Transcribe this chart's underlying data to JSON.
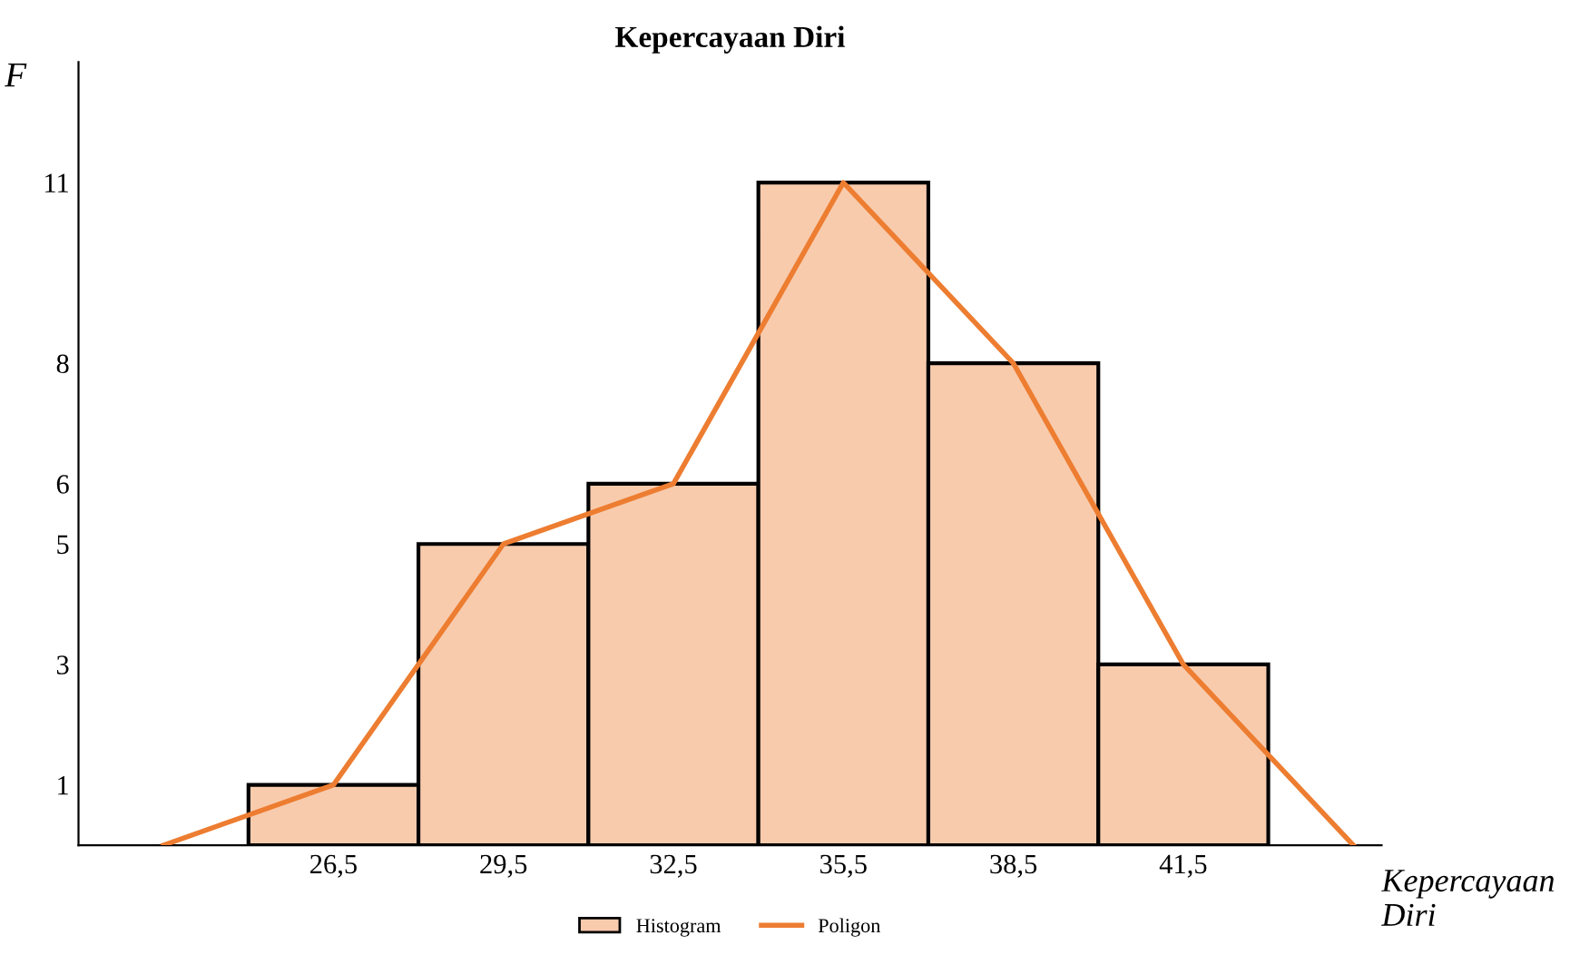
{
  "chart_data": {
    "type": "histogram",
    "title": "Kepercayaan Diri",
    "xlabel": "Kepercayaan Diri",
    "ylabel": "F",
    "bins": [
      25,
      28,
      31,
      34,
      37,
      40,
      43
    ],
    "series": [
      {
        "name": "Histogram",
        "color": "#f8cbad",
        "values": [
          1,
          5,
          6,
          11,
          8,
          3
        ]
      },
      {
        "name": "Poligon",
        "type": "line",
        "color": "#ed7d31",
        "x": [
          23.5,
          26.5,
          29.5,
          32.5,
          35.5,
          38.5,
          41.5,
          44.5
        ],
        "values": [
          0,
          1,
          5,
          6,
          11,
          8,
          3,
          0
        ]
      }
    ],
    "xlim": [
      22,
      45
    ],
    "xticks": [
      {
        "value": 26.5,
        "label": "26,5"
      },
      {
        "value": 29.5,
        "label": "29,5"
      },
      {
        "value": 32.5,
        "label": "32,5"
      },
      {
        "value": 35.5,
        "label": "35,5"
      },
      {
        "value": 38.5,
        "label": "38,5"
      },
      {
        "value": 41.5,
        "label": "41,5"
      }
    ],
    "ylim": [
      0,
      13
    ],
    "yticks": [
      1,
      3,
      5,
      6,
      8,
      11
    ],
    "legend": "bottom",
    "marker": "none",
    "line_style": "solid"
  }
}
